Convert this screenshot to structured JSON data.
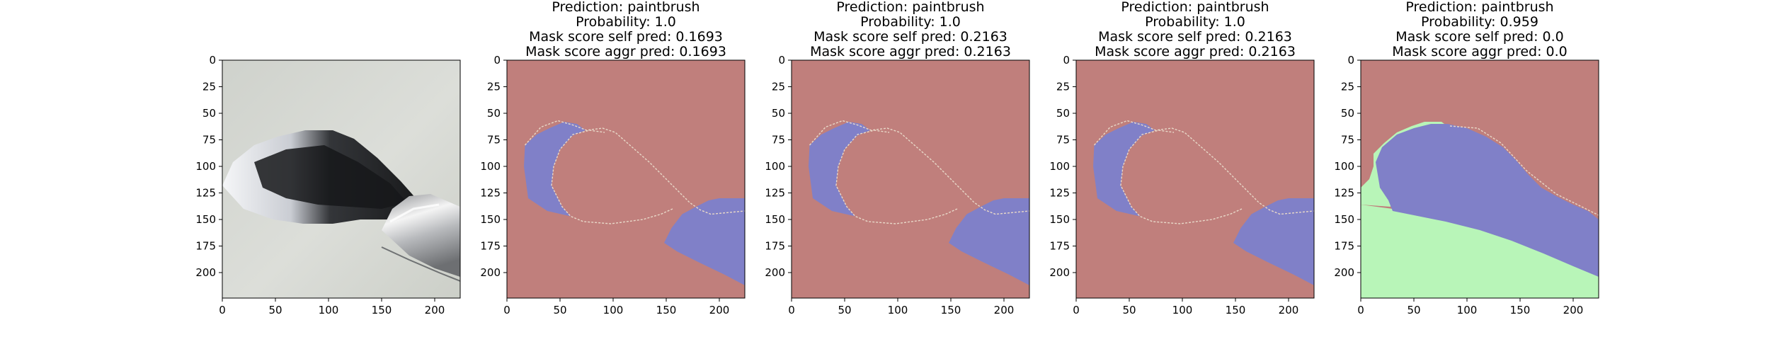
{
  "chart_data": {
    "type": "image-grid",
    "xlim": [
      0,
      224
    ],
    "ylim": [
      224,
      0
    ],
    "xticks": [
      0,
      50,
      100,
      150,
      200
    ],
    "yticks": [
      0,
      25,
      50,
      75,
      100,
      125,
      150,
      175,
      200
    ],
    "panels": [
      {
        "kind": "photo",
        "title_lines": []
      },
      {
        "kind": "mask",
        "variant": "a",
        "title_lines": [
          "Prediction: paintbrush",
          "Probability: 1.0",
          "Mask score self pred: 0.1693",
          "Mask score aggr pred: 0.1693"
        ]
      },
      {
        "kind": "mask",
        "variant": "b",
        "title_lines": [
          "Prediction: paintbrush",
          "Probability: 1.0",
          "Mask score self pred: 0.2163",
          "Mask score aggr pred: 0.2163"
        ]
      },
      {
        "kind": "mask",
        "variant": "b",
        "title_lines": [
          "Prediction: paintbrush",
          "Probability: 1.0",
          "Mask score self pred: 0.2163",
          "Mask score aggr pred: 0.2163"
        ]
      },
      {
        "kind": "mask",
        "variant": "c",
        "title_lines": [
          "Prediction: paintbrush",
          "Probability: 0.959",
          "Mask score self pred: 0.0",
          "Mask score aggr pred: 0.0"
        ]
      }
    ],
    "colors": {
      "background_mask": "#c07f7c",
      "foreground_mask": "#8080c8",
      "third_mask": "#b8f5b8"
    }
  }
}
